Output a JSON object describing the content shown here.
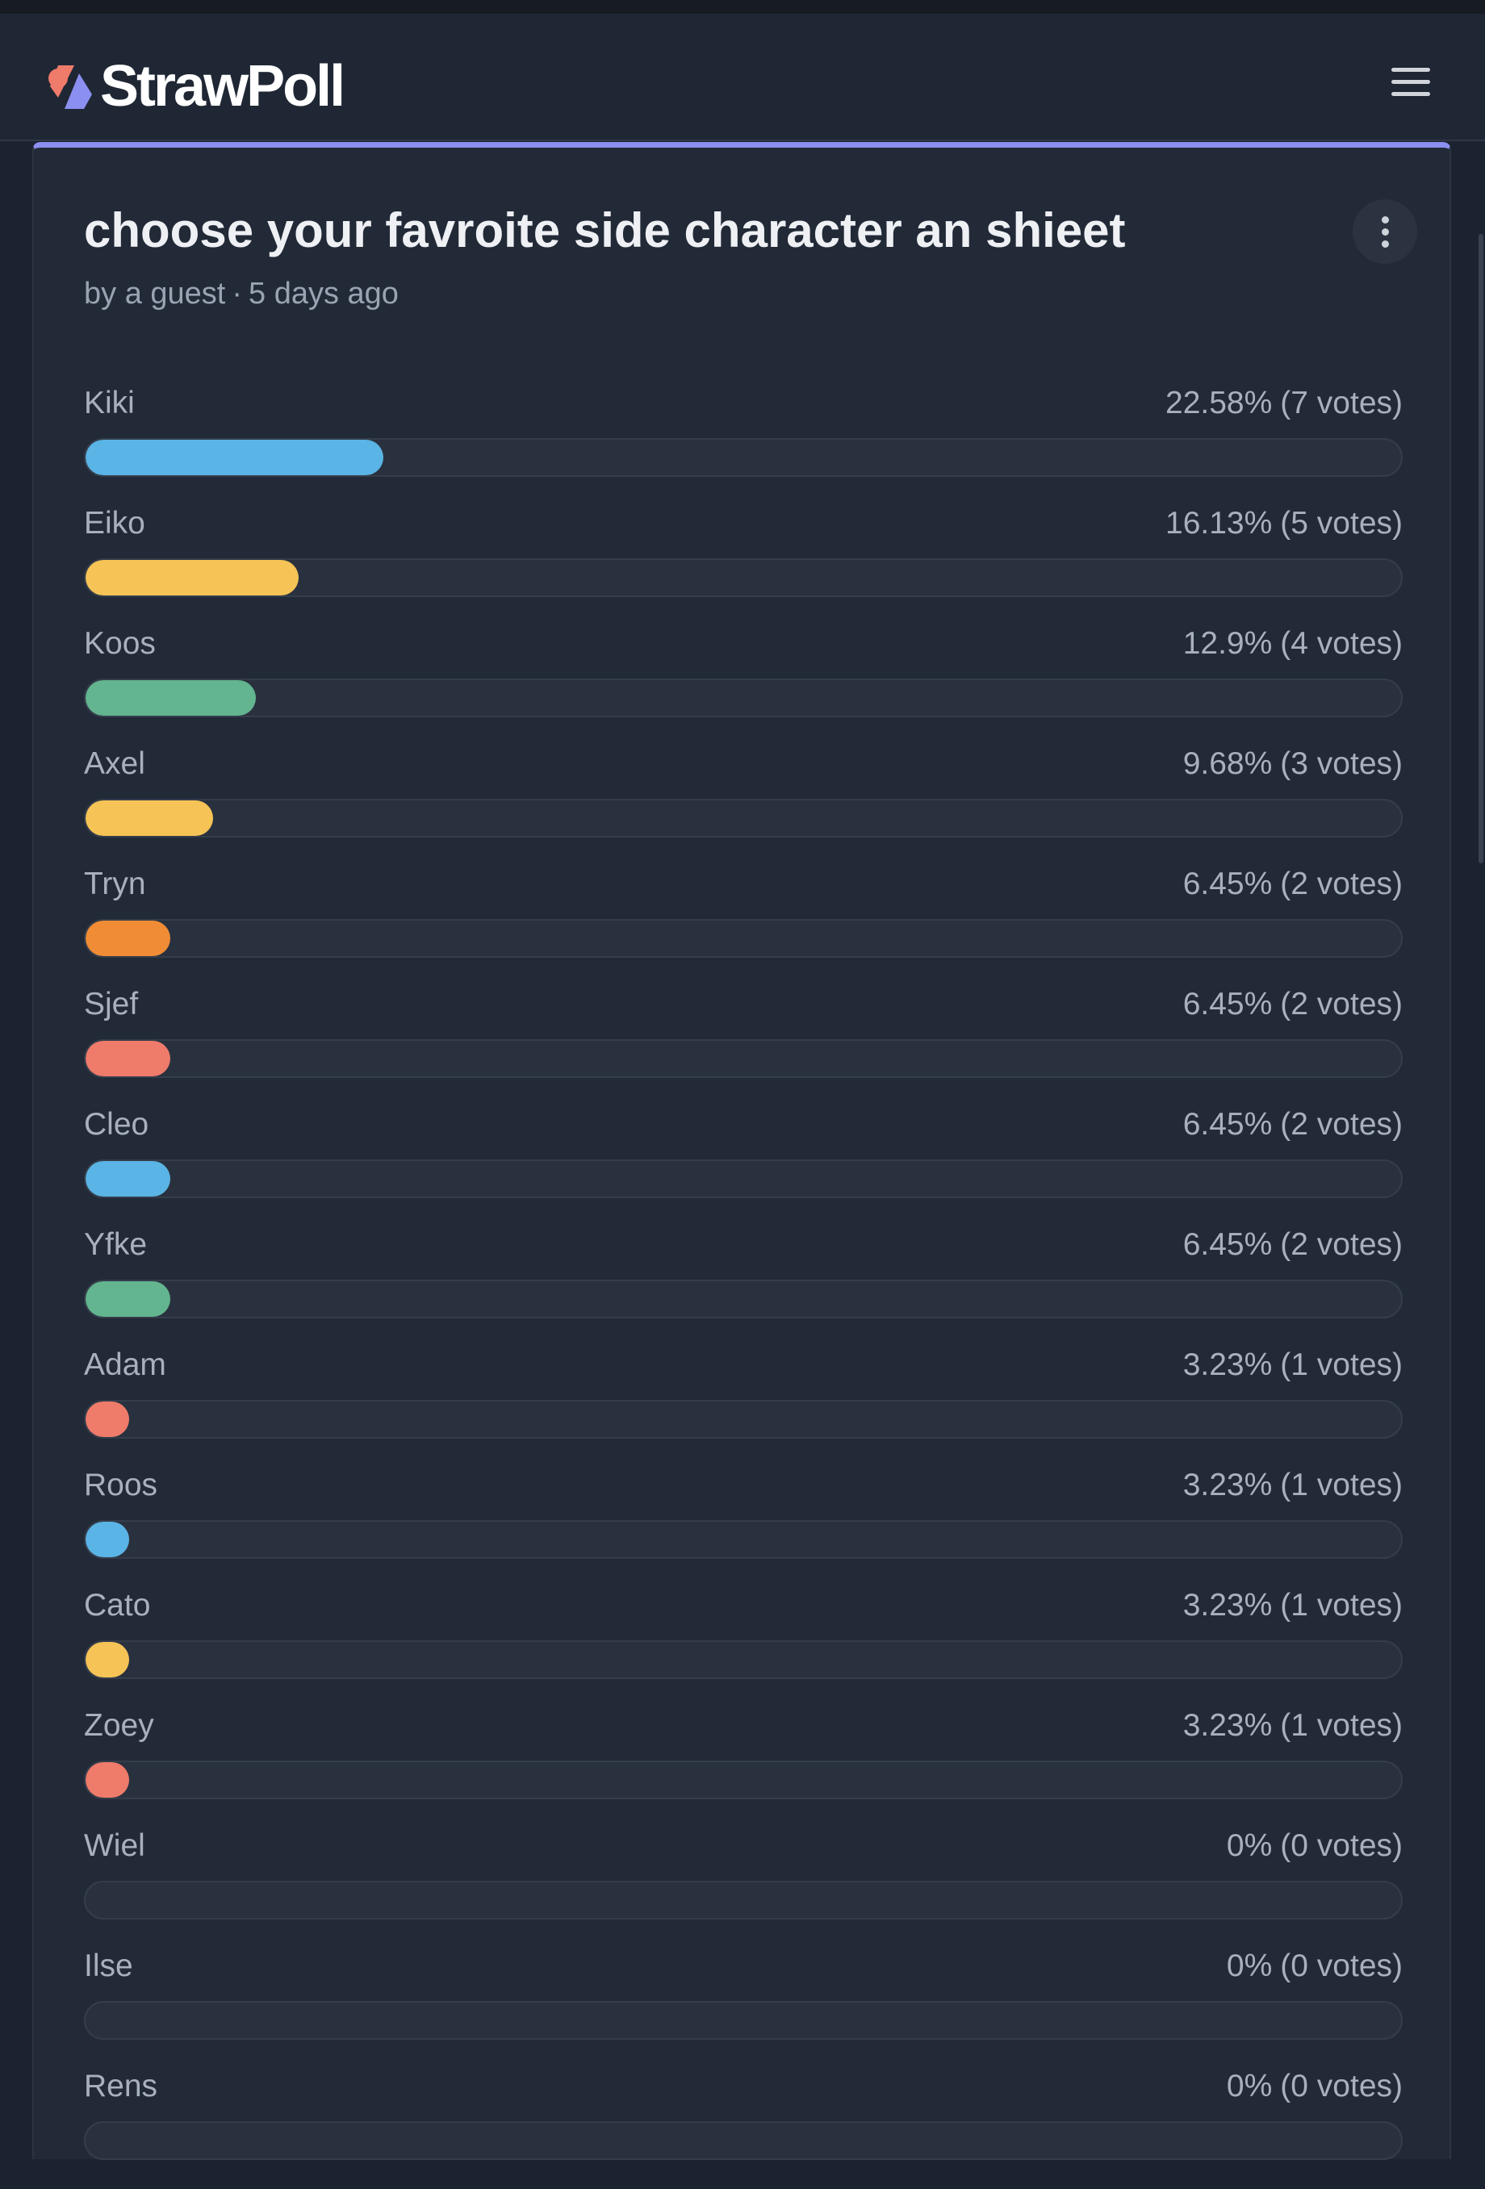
{
  "brand": {
    "name": "StrawPoll"
  },
  "poll": {
    "title": "choose your favroite side character an shieet",
    "author": "by a guest",
    "time": "5 days ago",
    "separator": "·",
    "options": [
      {
        "label": "Kiki",
        "percent": "22.58%",
        "votes": "(7 votes)",
        "fraction": 0.2258,
        "color": "#5ab4e5"
      },
      {
        "label": "Eiko",
        "percent": "16.13%",
        "votes": "(5 votes)",
        "fraction": 0.1613,
        "color": "#f5c356"
      },
      {
        "label": "Koos",
        "percent": "12.9%",
        "votes": "(4 votes)",
        "fraction": 0.129,
        "color": "#62b58f"
      },
      {
        "label": "Axel",
        "percent": "9.68%",
        "votes": "(3 votes)",
        "fraction": 0.0968,
        "color": "#f5c356"
      },
      {
        "label": "Tryn",
        "percent": "6.45%",
        "votes": "(2 votes)",
        "fraction": 0.0645,
        "color": "#f08c35"
      },
      {
        "label": "Sjef",
        "percent": "6.45%",
        "votes": "(2 votes)",
        "fraction": 0.0645,
        "color": "#ef7b6b"
      },
      {
        "label": "Cleo",
        "percent": "6.45%",
        "votes": "(2 votes)",
        "fraction": 0.0645,
        "color": "#5ab4e5"
      },
      {
        "label": "Yfke",
        "percent": "6.45%",
        "votes": "(2 votes)",
        "fraction": 0.0645,
        "color": "#62b58f"
      },
      {
        "label": "Adam",
        "percent": "3.23%",
        "votes": "(1 votes)",
        "fraction": 0.0323,
        "color": "#ef7b6b"
      },
      {
        "label": "Roos",
        "percent": "3.23%",
        "votes": "(1 votes)",
        "fraction": 0.0323,
        "color": "#5ab4e5"
      },
      {
        "label": "Cato",
        "percent": "3.23%",
        "votes": "(1 votes)",
        "fraction": 0.0323,
        "color": "#f5c356"
      },
      {
        "label": "Zoey",
        "percent": "3.23%",
        "votes": "(1 votes)",
        "fraction": 0.0323,
        "color": "#ef7b6b"
      },
      {
        "label": "Wiel",
        "percent": "0%",
        "votes": "(0 votes)",
        "fraction": 0,
        "color": "#5ab4e5"
      },
      {
        "label": "Ilse",
        "percent": "0%",
        "votes": "(0 votes)",
        "fraction": 0,
        "color": "#5ab4e5"
      },
      {
        "label": "Rens",
        "percent": "0%",
        "votes": "(0 votes)",
        "fraction": 0,
        "color": "#5ab4e5"
      }
    ]
  },
  "icons": {
    "logo": "strawpoll-logo-icon",
    "menu": "hamburger-menu-icon",
    "more": "more-vertical-icon"
  }
}
